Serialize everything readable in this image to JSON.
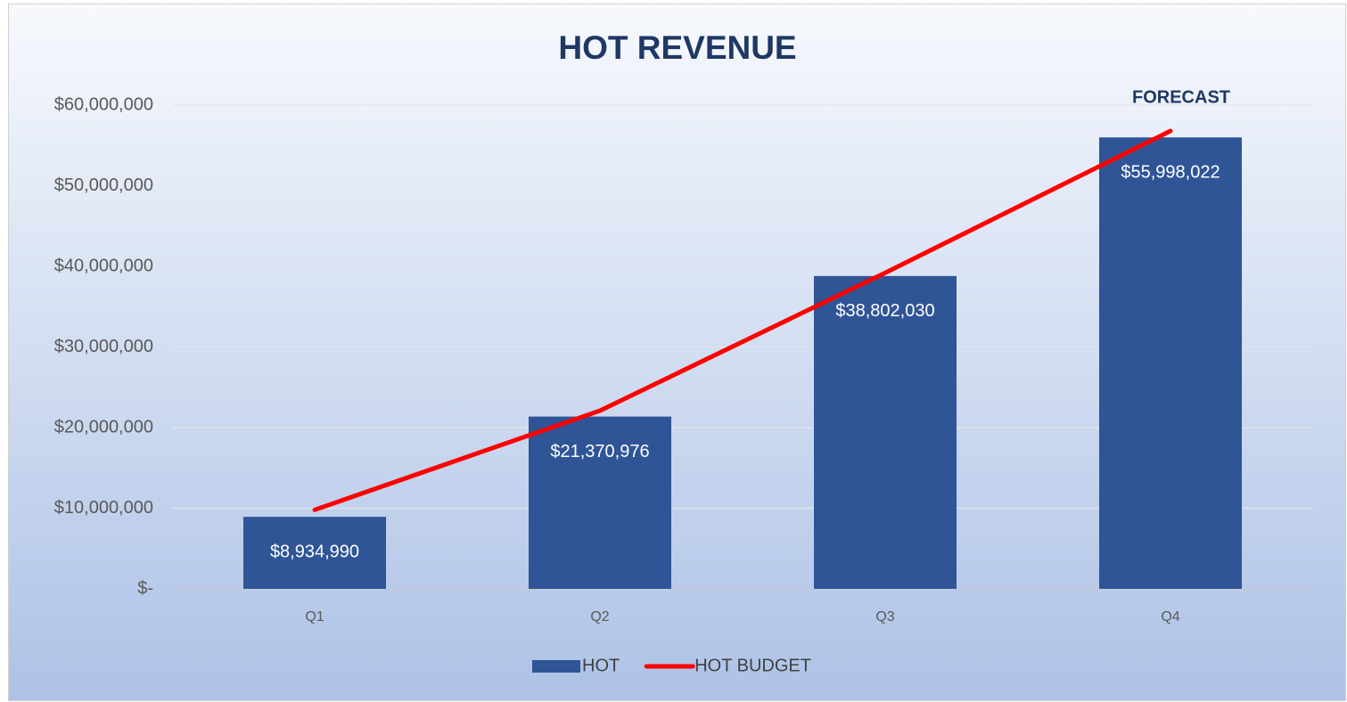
{
  "chart_data": {
    "type": "bar",
    "title": "HOT REVENUE",
    "annotation": "FORECAST",
    "categories": [
      "Q1",
      "Q2",
      "Q3",
      "Q4"
    ],
    "series": [
      {
        "name": "HOT",
        "type": "bar",
        "color": "#2f5597",
        "values": [
          8934990,
          21370976,
          38802030,
          55998022
        ],
        "value_labels": [
          "$8,934,990",
          "$21,370,976",
          "$38,802,030",
          "$55,998,022"
        ]
      },
      {
        "name": "HOT BUDGET",
        "type": "line",
        "color": "#ff0000",
        "values": [
          9800000,
          22100000,
          39200000,
          56800000
        ]
      }
    ],
    "ylim": [
      0,
      60000000
    ],
    "yticks": [
      {
        "value": 0,
        "label": "$-"
      },
      {
        "value": 10000000,
        "label": "$10,000,000"
      },
      {
        "value": 20000000,
        "label": "$20,000,000"
      },
      {
        "value": 30000000,
        "label": "$30,000,000"
      },
      {
        "value": 40000000,
        "label": "$40,000,000"
      },
      {
        "value": 50000000,
        "label": "$50,000,000"
      },
      {
        "value": 60000000,
        "label": "$60,000,000"
      }
    ],
    "grid": true,
    "legend": "bottom"
  }
}
